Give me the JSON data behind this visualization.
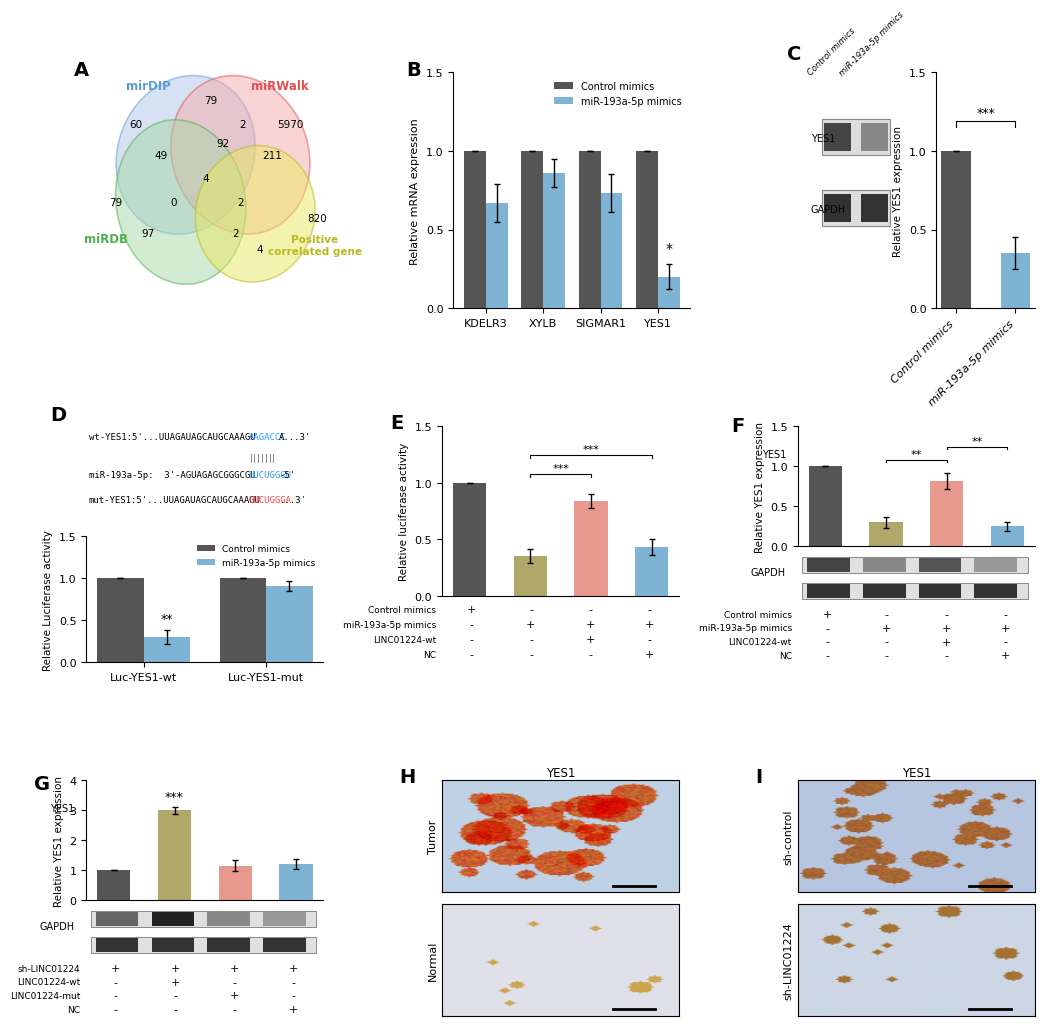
{
  "venn": {
    "label_colors": [
      "#5b9bd5",
      "#e05050",
      "#4daf4a",
      "#b8b820"
    ],
    "numbers": [
      [
        2.0,
        7.8,
        "60"
      ],
      [
        8.2,
        7.8,
        "5970"
      ],
      [
        1.2,
        4.5,
        "79"
      ],
      [
        9.3,
        3.8,
        "820"
      ],
      [
        5.0,
        8.8,
        "79"
      ],
      [
        3.0,
        6.5,
        "49"
      ],
      [
        2.5,
        3.2,
        "97"
      ],
      [
        5.5,
        7.0,
        "92"
      ],
      [
        7.5,
        6.5,
        "211"
      ],
      [
        7.0,
        2.5,
        "4"
      ],
      [
        4.8,
        5.5,
        "4"
      ],
      [
        3.5,
        4.5,
        "0"
      ],
      [
        6.2,
        4.5,
        "2"
      ],
      [
        6.0,
        3.2,
        "2"
      ],
      [
        6.3,
        7.8,
        "2"
      ]
    ]
  },
  "panelB": {
    "categories": [
      "KDELR3",
      "XYLB",
      "SIGMAR1",
      "YES1"
    ],
    "control_vals": [
      1.0,
      1.0,
      1.0,
      1.0
    ],
    "mirna_vals": [
      0.67,
      0.86,
      0.73,
      0.2
    ],
    "control_err": [
      0.0,
      0.0,
      0.0,
      0.0
    ],
    "mirna_err": [
      0.12,
      0.09,
      0.12,
      0.08
    ],
    "ylabel": "Relative mRNA expression",
    "ylim": [
      0,
      1.5
    ],
    "yticks": [
      0.0,
      0.5,
      1.0,
      1.5
    ],
    "sig": [
      "",
      "",
      "",
      "*"
    ],
    "control_color": "#555555",
    "mirna_color": "#7fb3d3"
  },
  "panelC_bar": {
    "categories": [
      "Control mimics",
      "miR-193a-5p mimics"
    ],
    "values": [
      1.0,
      0.35
    ],
    "errors": [
      0.0,
      0.1
    ],
    "ylabel": "Relative YES1 expression",
    "ylim": [
      0,
      1.5
    ],
    "yticks": [
      0.0,
      0.5,
      1.0,
      1.5
    ],
    "sig": "***",
    "colors": [
      "#555555",
      "#7fb3d3"
    ]
  },
  "panelD": {
    "bar_categories": [
      "Luc-YES1-wt",
      "Luc-YES1-mut"
    ],
    "control_vals": [
      1.0,
      1.0
    ],
    "mirna_vals": [
      0.3,
      0.91
    ],
    "control_err": [
      0.0,
      0.0
    ],
    "mirna_err": [
      0.08,
      0.06
    ],
    "ylabel": "Relative Luciferase activity",
    "ylim": [
      0,
      1.5
    ],
    "yticks": [
      0.0,
      0.5,
      1.0,
      1.5
    ],
    "sig": [
      "**",
      ""
    ],
    "control_color": "#555555",
    "mirna_color": "#7fb3d3"
  },
  "panelE": {
    "values": [
      1.0,
      0.35,
      0.84,
      0.43
    ],
    "errors": [
      0.0,
      0.06,
      0.06,
      0.07
    ],
    "ylabel": "Relative luciferase activity",
    "ylim": [
      0,
      1.5
    ],
    "yticks": [
      0.0,
      0.5,
      1.0,
      1.5
    ],
    "colors": [
      "#555555",
      "#b0a868",
      "#e8998d",
      "#7fb3d3"
    ],
    "table_rows": [
      "Control mimics",
      "miR-193a-5p mimics",
      "LINC01224-wt",
      "NC"
    ],
    "table_data": [
      [
        "+",
        "-",
        "-",
        "-"
      ],
      [
        "-",
        "+",
        "+",
        "+"
      ],
      [
        "-",
        "-",
        "+",
        "-"
      ],
      [
        "-",
        "-",
        "-",
        "+"
      ]
    ]
  },
  "panelF": {
    "values": [
      1.0,
      0.3,
      0.82,
      0.25
    ],
    "errors": [
      0.0,
      0.07,
      0.1,
      0.06
    ],
    "ylabel": "Relative YES1 expression",
    "ylim": [
      0,
      1.5
    ],
    "yticks": [
      0.0,
      0.5,
      1.0,
      1.5
    ],
    "colors": [
      "#555555",
      "#b0a868",
      "#e8998d",
      "#7fb3d3"
    ],
    "table_rows": [
      "Control mimics",
      "miR-193a-5p mimics",
      "LINC01224-wt",
      "NC"
    ],
    "table_data": [
      [
        "+",
        "-",
        "-",
        "-"
      ],
      [
        "-",
        "+",
        "+",
        "+"
      ],
      [
        "-",
        "-",
        "+",
        "-"
      ],
      [
        "-",
        "-",
        "-",
        "+"
      ]
    ]
  },
  "panelG": {
    "values": [
      1.0,
      3.0,
      1.15,
      1.2
    ],
    "errors": [
      0.0,
      0.12,
      0.18,
      0.17
    ],
    "ylabel": "Relative YES1 expression",
    "ylim": [
      0,
      4
    ],
    "yticks": [
      0,
      1,
      2,
      3,
      4
    ],
    "colors": [
      "#555555",
      "#b0a868",
      "#e8998d",
      "#7fb3d3"
    ],
    "sig": [
      "",
      "***",
      "",
      ""
    ],
    "table_rows": [
      "sh-LINC01224",
      "LINC01224-wt",
      "LINC01224-mut",
      "NC"
    ],
    "table_data": [
      [
        "+",
        "+",
        "+",
        "+"
      ],
      [
        "-",
        "+",
        "-",
        "-"
      ],
      [
        "-",
        "-",
        "+",
        "-"
      ],
      [
        "-",
        "-",
        "-",
        "+"
      ]
    ]
  }
}
